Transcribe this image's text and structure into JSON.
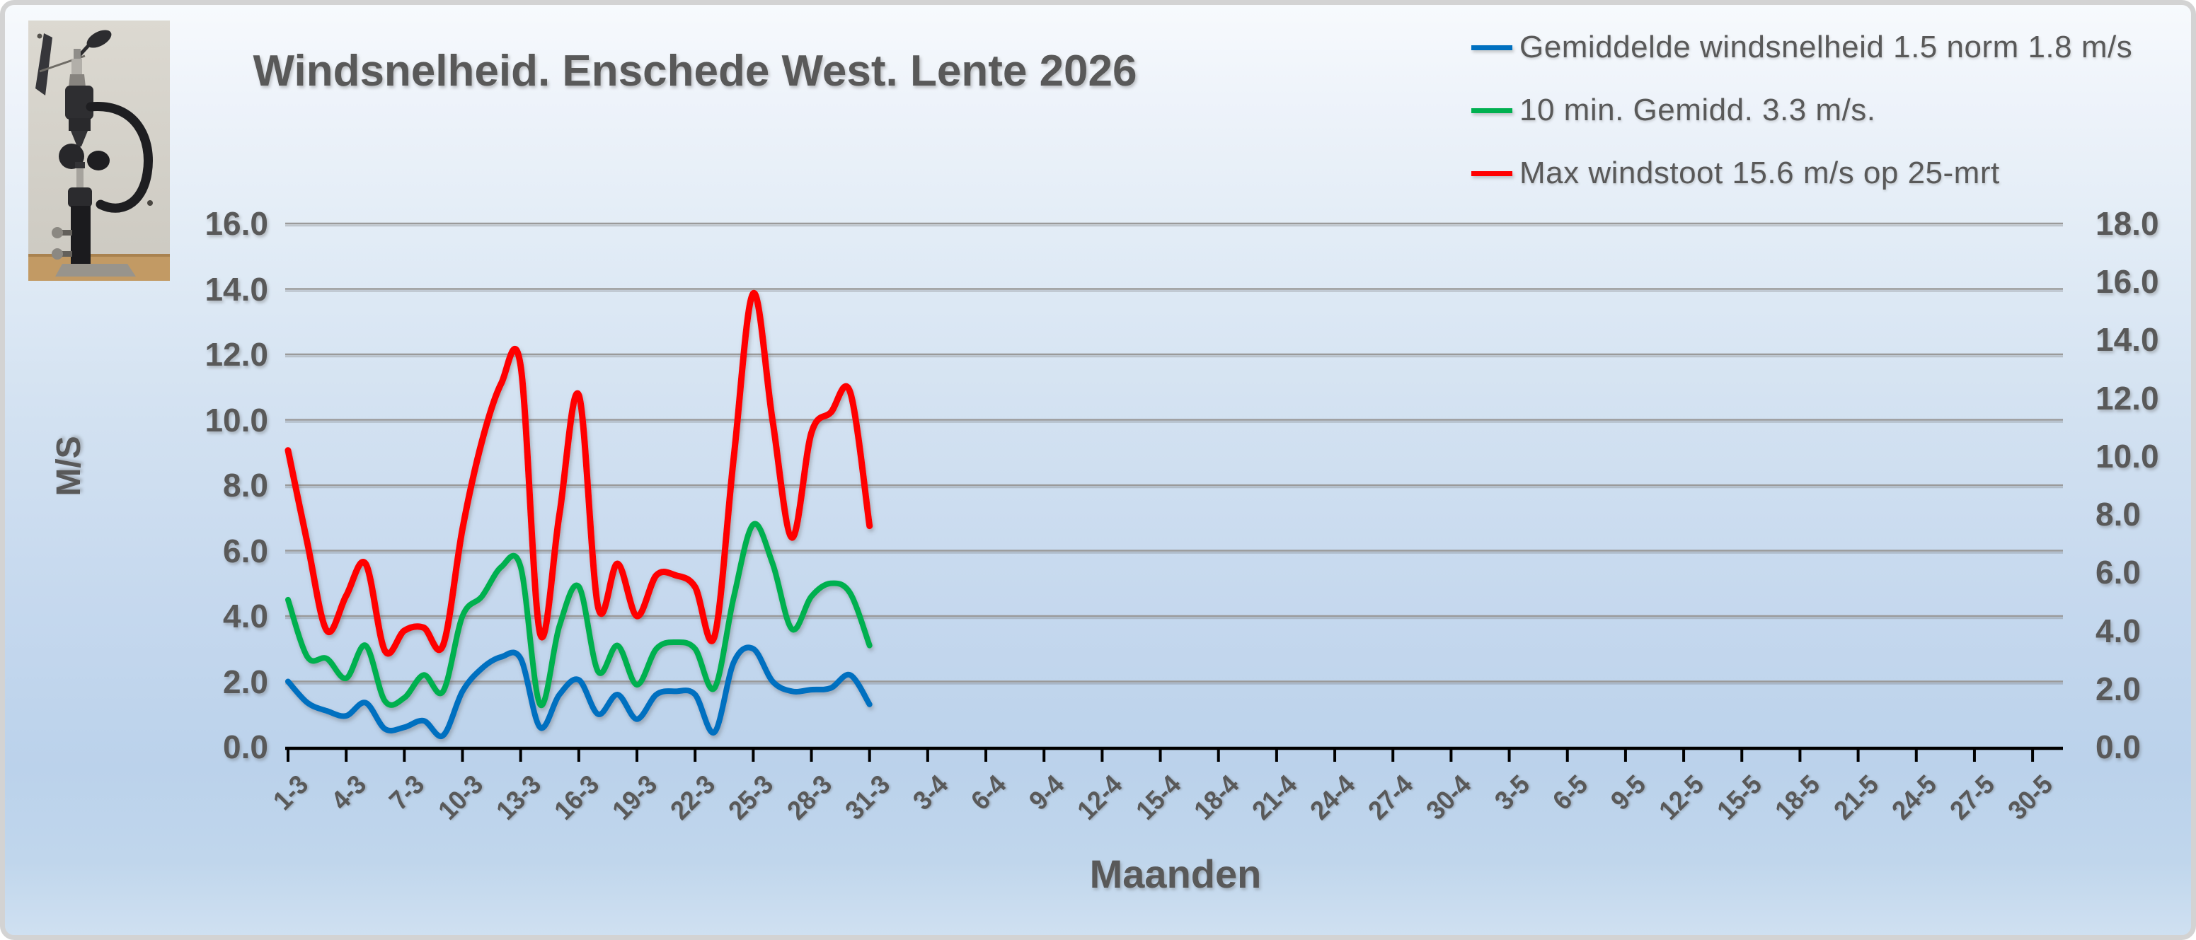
{
  "chart": {
    "title": "Windsnelheid. Enschede West. Lente 2026",
    "y_axis_left": {
      "title": "M/S",
      "tick_labels": [
        "16.0",
        "14.0",
        "12.0",
        "10.0",
        "8.0",
        "6.0",
        "4.0",
        "2.0",
        "0.0"
      ]
    },
    "y_axis_right": {
      "tick_labels": [
        "18.0",
        "16.0",
        "14.0",
        "12.0",
        "10.0",
        "8.0",
        "6.0",
        "4.0",
        "2.0",
        "0.0"
      ]
    },
    "x_axis": {
      "title": "Maanden",
      "tick_labels": [
        "1-3",
        "4-3",
        "7-3",
        "10-3",
        "13-3",
        "16-3",
        "19-3",
        "22-3",
        "25-3",
        "28-3",
        "31-3",
        "3-4",
        "6-4",
        "9-4",
        "12-4",
        "15-4",
        "18-4",
        "21-4",
        "24-4",
        "27-4",
        "30-4",
        "3-5",
        "6-5",
        "9-5",
        "12-5",
        "15-5",
        "18-5",
        "21-5",
        "24-5",
        "27-5",
        "30-5"
      ]
    },
    "legend": [
      {
        "label": "Gemiddelde windsnelheid 1.5 norm 1.8 m/s",
        "color": "#0070C0"
      },
      {
        "label": "10 min. Gemidd. 3.3 m/s.",
        "color": "#00B050"
      },
      {
        "label": "Max windstoot 15.6 m/s op 25-mrt",
        "color": "#FF0000"
      }
    ]
  },
  "chart_data": {
    "type": "line",
    "smoothed": true,
    "title": "Windsnelheid. Enschede West. Lente 2026",
    "xlabel": "Maanden",
    "ylabel": "M/S",
    "ylim_left": [
      0,
      16
    ],
    "ylim_right": [
      0,
      18
    ],
    "grid": true,
    "legend_position": "top-right",
    "x": [
      "1-3",
      "2-3",
      "3-3",
      "4-3",
      "5-3",
      "6-3",
      "7-3",
      "8-3",
      "9-3",
      "10-3",
      "11-3",
      "12-3",
      "13-3",
      "14-3",
      "15-3",
      "16-3",
      "17-3",
      "18-3",
      "19-3",
      "20-3",
      "21-3",
      "22-3",
      "23-3",
      "24-3",
      "25-3",
      "26-3",
      "27-3",
      "28-3",
      "29-3",
      "30-3",
      "31-3"
    ],
    "x_axis_span_labels": [
      "1-3",
      "30-5"
    ],
    "series": [
      {
        "name": "Gemiddelde windsnelheid 1.5 norm 1.8 m/s",
        "color": "#0070C0",
        "axis": "left",
        "values": [
          2.0,
          1.35,
          1.1,
          0.95,
          1.35,
          0.55,
          0.6,
          0.8,
          0.35,
          1.7,
          2.4,
          2.75,
          2.7,
          0.6,
          1.6,
          2.05,
          1.0,
          1.6,
          0.85,
          1.6,
          1.7,
          1.6,
          0.45,
          2.6,
          3.0,
          2.0,
          1.7,
          1.75,
          1.8,
          2.2,
          1.3
        ]
      },
      {
        "name": "10 min. Gemidd. 3.3 m/s.",
        "color": "#00B050",
        "axis": "left",
        "values": [
          4.5,
          2.75,
          2.7,
          2.1,
          3.1,
          1.4,
          1.5,
          2.2,
          1.7,
          4.0,
          4.6,
          5.5,
          5.5,
          1.3,
          3.7,
          4.9,
          2.3,
          3.1,
          1.9,
          3.0,
          3.2,
          3.0,
          1.8,
          4.6,
          6.8,
          5.6,
          3.6,
          4.6,
          5.0,
          4.7,
          3.1
        ]
      },
      {
        "name": "Max windstoot 15.6 m/s op 25-mrt",
        "color": "#FF0000",
        "axis": "right",
        "values": [
          10.2,
          7.0,
          4.0,
          5.2,
          6.3,
          3.3,
          4.0,
          4.1,
          3.5,
          7.5,
          10.5,
          12.5,
          13.1,
          3.9,
          8.0,
          12.1,
          4.8,
          6.3,
          4.5,
          5.9,
          5.9,
          5.5,
          3.8,
          10.0,
          15.6,
          11.2,
          7.2,
          10.8,
          11.5,
          12.2,
          7.6
        ]
      }
    ]
  },
  "colors": {
    "text": "#595959",
    "gridline": "#9a9a9a",
    "axis_line": "#000000",
    "frame_border": "#d3d3d3",
    "series_blue": "#0070C0",
    "series_green": "#00B050",
    "series_red": "#FF0000"
  },
  "images": {
    "anemometer_photo": "wall-mounted wind vane and cup anemometer on black pole"
  }
}
